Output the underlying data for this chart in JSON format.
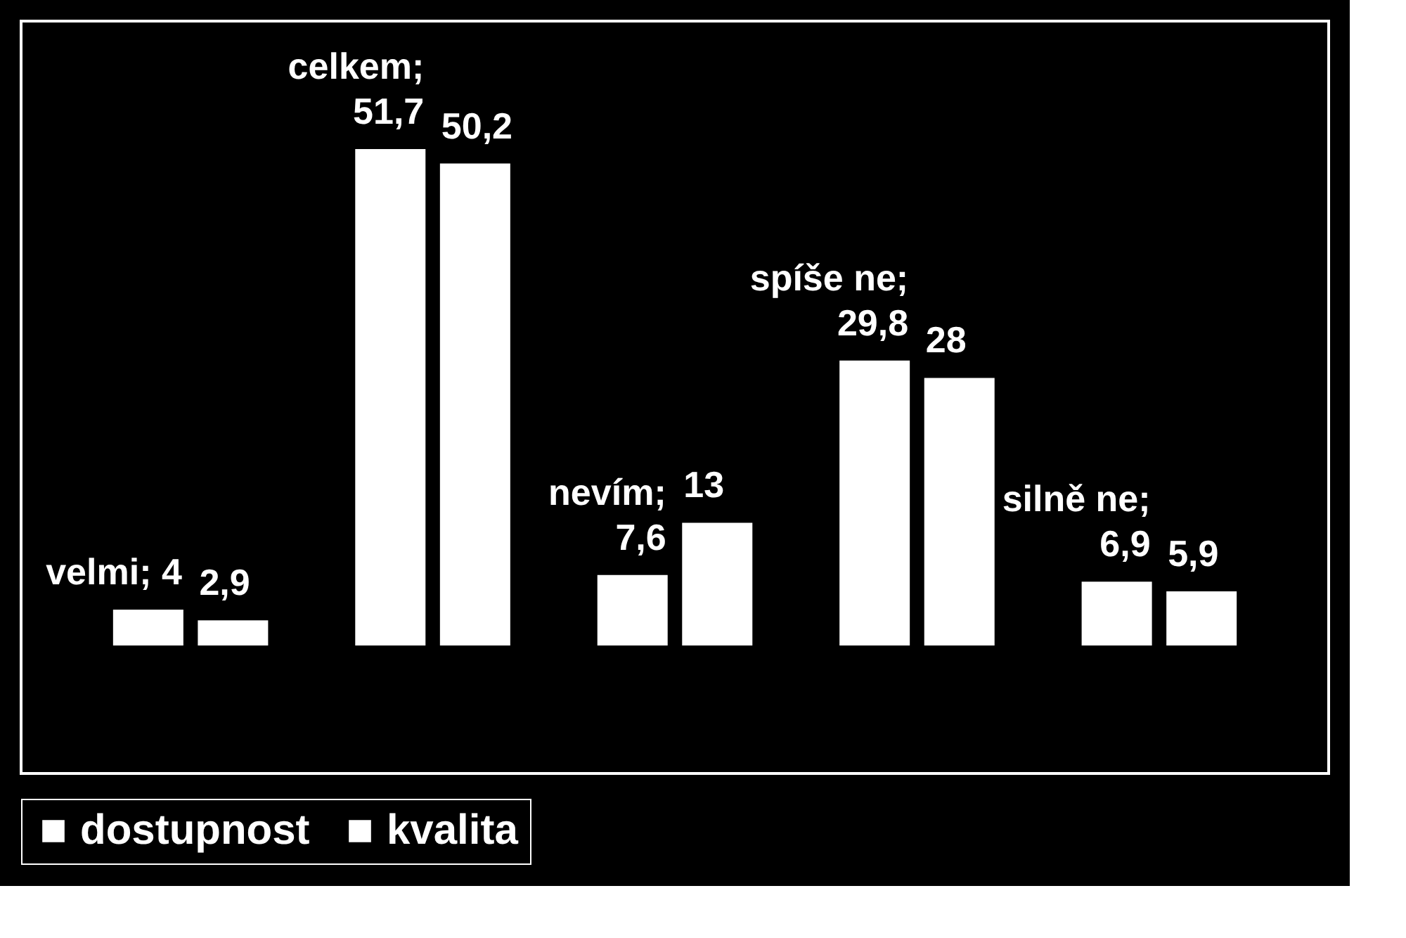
{
  "chart_data": {
    "type": "bar",
    "categories": [
      null,
      null,
      null,
      null,
      null
    ],
    "series": [
      {
        "name": "dostupnost",
        "color": "#ffffff",
        "values": [
          4,
          51.7,
          7.6,
          29.8,
          6.9
        ],
        "value_labels": [
          "velmi; 4",
          "celkem;\n51,7",
          "nevím;\n7,6",
          "spíše ne;\n29,8",
          "silně ne;\n6,9"
        ]
      },
      {
        "name": "kvalita",
        "color": "#ffffff",
        "values": [
          2.9,
          50.2,
          13,
          28,
          5.9
        ],
        "value_labels": [
          "2,9",
          "50,2",
          "13",
          "28",
          "5,9"
        ]
      }
    ],
    "legend": "bottom",
    "grid": false,
    "tick_labels": false
  }
}
